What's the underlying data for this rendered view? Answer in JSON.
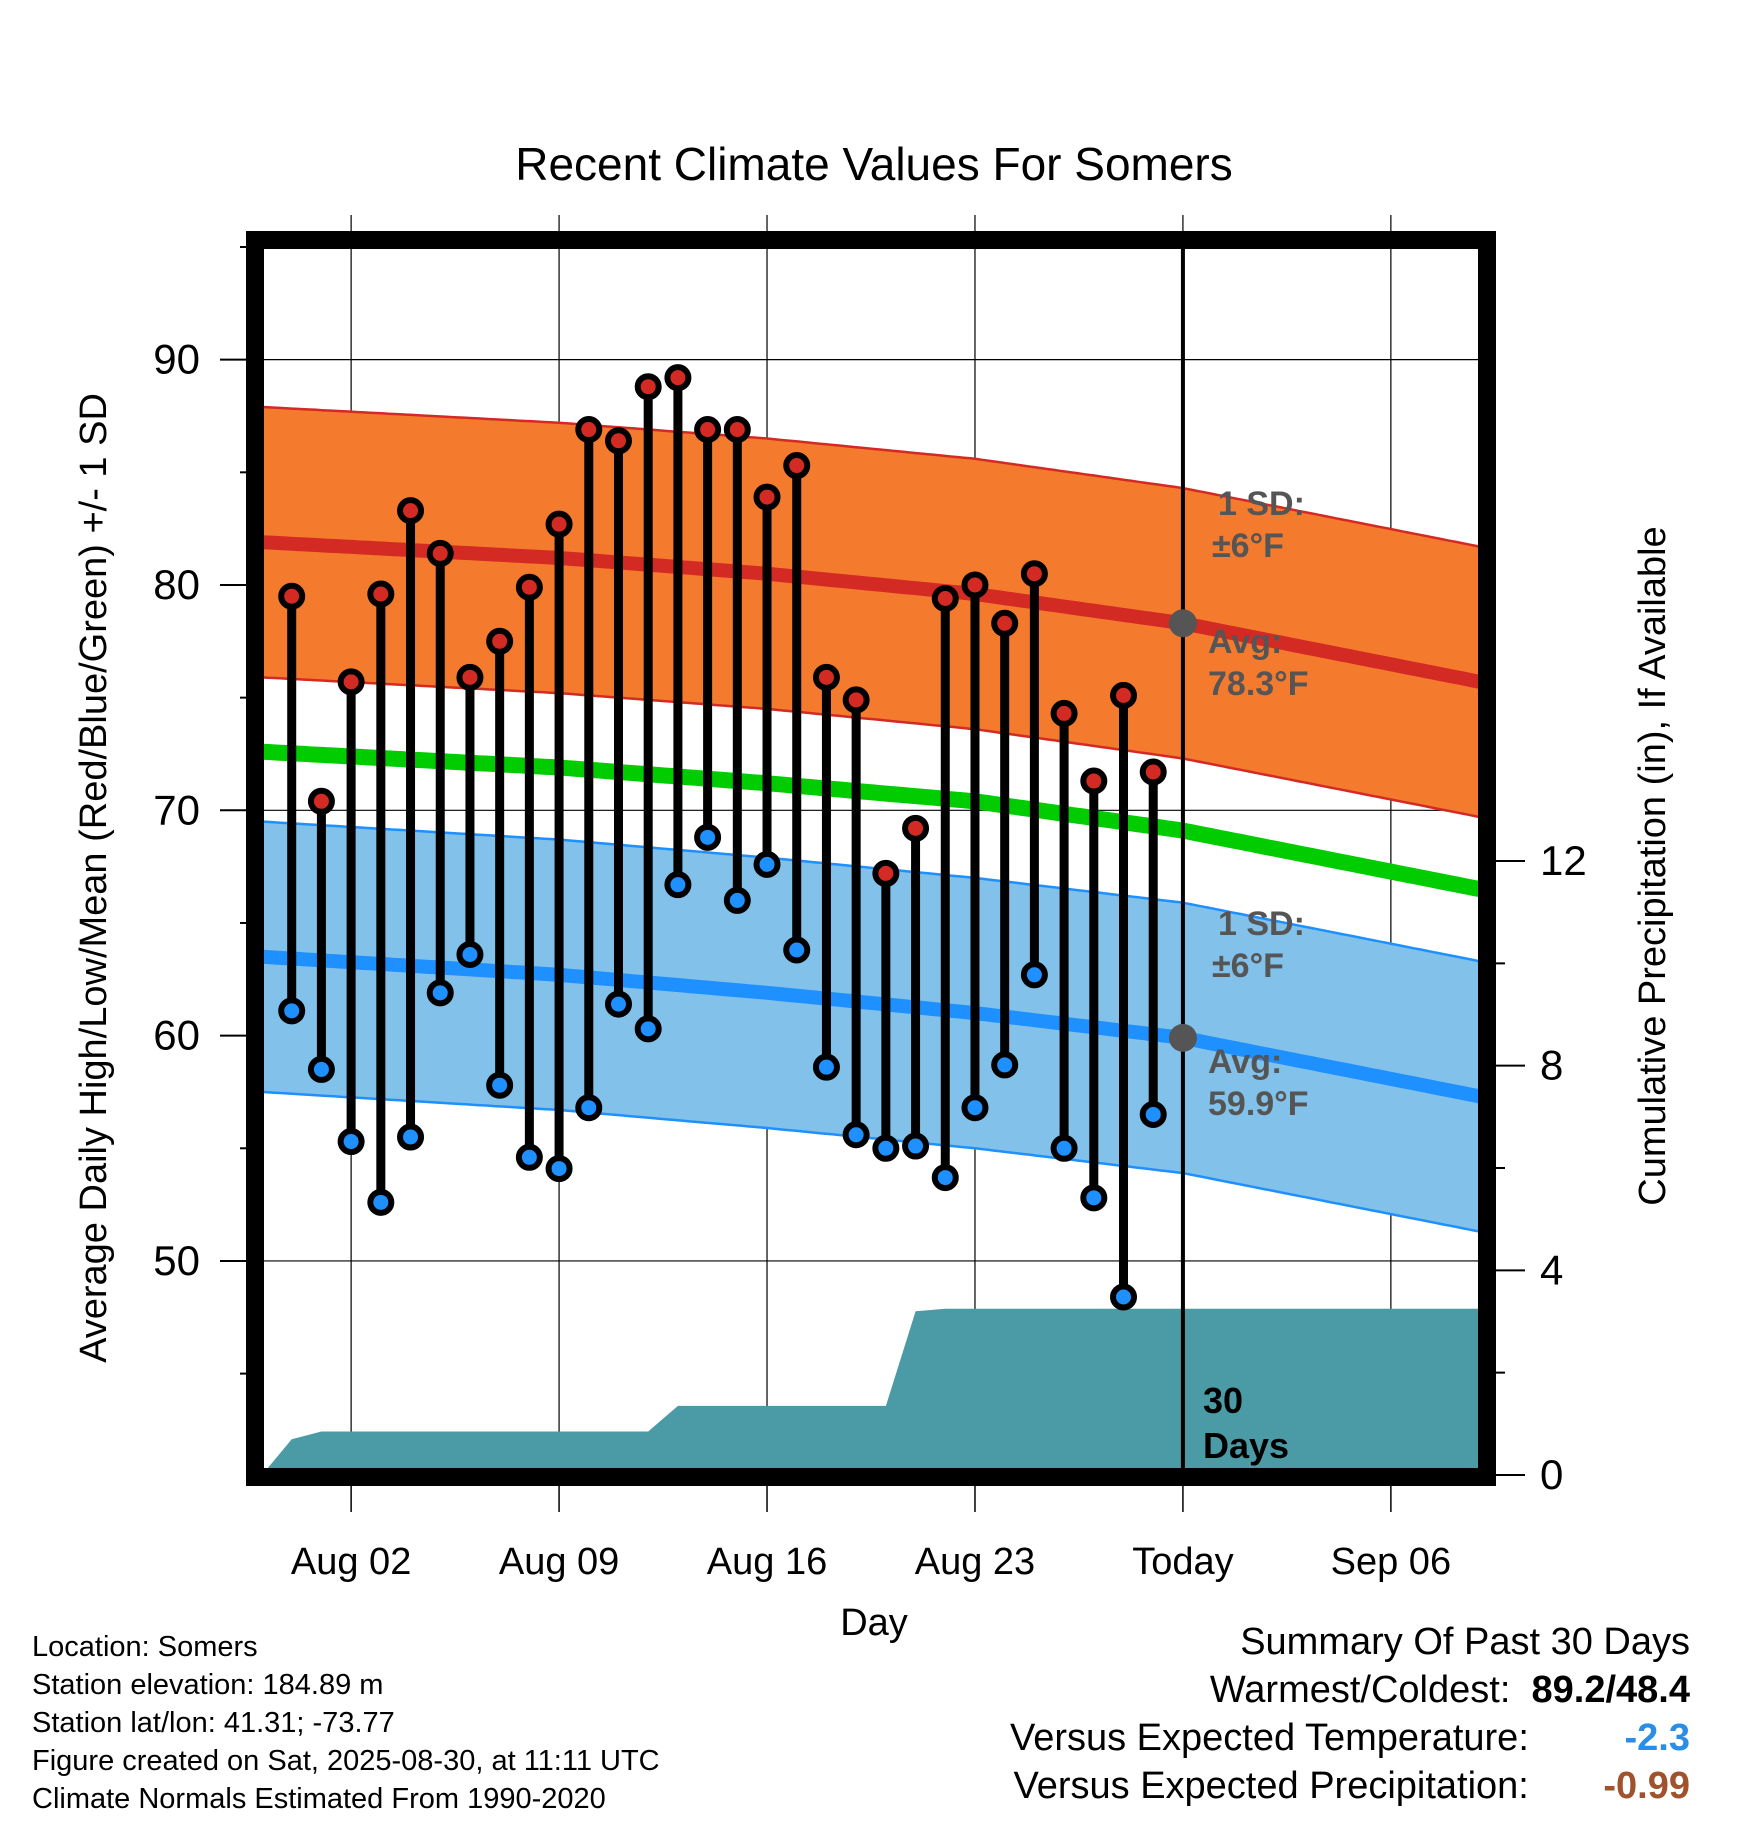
{
  "chart_data": {
    "type": "line",
    "title": "Recent Climate Values For Somers",
    "xlabel": "Day",
    "ylabel": "Average Daily High/Low/Mean (Red/Blue/Green) +/- 1 SD",
    "y2label": "Cumulative Precipitation (in), If Available",
    "ylim": [
      40.5,
      95
    ],
    "y2lim": [
      0,
      24
    ],
    "yticks": [
      50,
      60,
      70,
      80,
      90
    ],
    "y2ticks": [
      0,
      4,
      8,
      12
    ],
    "x_dates": [
      "2025-07-30",
      "2025-09-09"
    ],
    "xticks": [
      {
        "date": "2025-08-02",
        "label": "Aug 02"
      },
      {
        "date": "2025-08-09",
        "label": "Aug 09"
      },
      {
        "date": "2025-08-16",
        "label": "Aug 16"
      },
      {
        "date": "2025-08-23",
        "label": "Aug 23"
      },
      {
        "date": "2025-08-30",
        "label": "Today"
      },
      {
        "date": "2025-09-06",
        "label": "Sep 06"
      }
    ],
    "grid": true,
    "today": "2025-08-30",
    "today_label": "30 Days",
    "daily": {
      "dates": [
        "2025-07-31",
        "2025-08-01",
        "2025-08-02",
        "2025-08-03",
        "2025-08-04",
        "2025-08-05",
        "2025-08-06",
        "2025-08-07",
        "2025-08-08",
        "2025-08-09",
        "2025-08-10",
        "2025-08-11",
        "2025-08-12",
        "2025-08-13",
        "2025-08-14",
        "2025-08-15",
        "2025-08-16",
        "2025-08-17",
        "2025-08-18",
        "2025-08-19",
        "2025-08-20",
        "2025-08-21",
        "2025-08-22",
        "2025-08-23",
        "2025-08-24",
        "2025-08-25",
        "2025-08-26",
        "2025-08-27",
        "2025-08-28",
        "2025-08-29"
      ],
      "highs": [
        79.5,
        70.4,
        75.7,
        79.6,
        83.3,
        81.4,
        75.9,
        77.5,
        79.9,
        82.7,
        86.9,
        86.4,
        88.8,
        89.2,
        86.9,
        86.9,
        83.9,
        85.3,
        75.9,
        74.9,
        67.2,
        69.2,
        79.4,
        80.0,
        78.3,
        80.5,
        74.3,
        71.3,
        75.1,
        71.7
      ],
      "lows": [
        61.1,
        58.5,
        55.3,
        52.6,
        55.5,
        61.9,
        63.6,
        57.8,
        54.6,
        54.1,
        56.8,
        61.4,
        60.3,
        66.7,
        68.8,
        66.0,
        67.6,
        63.8,
        58.6,
        55.6,
        55.0,
        55.1,
        53.7,
        56.8,
        58.7,
        62.7,
        55.0,
        52.8,
        48.4,
        56.5
      ]
    },
    "normals": {
      "dates": [
        "2025-07-30",
        "2025-08-09",
        "2025-08-16",
        "2025-08-23",
        "2025-08-30",
        "2025-09-09"
      ],
      "high_avg": [
        81.9,
        81.2,
        80.5,
        79.6,
        78.3,
        75.7
      ],
      "low_avg": [
        63.5,
        62.7,
        61.9,
        61.0,
        59.9,
        57.3
      ],
      "mean_avg": [
        72.6,
        71.9,
        71.2,
        70.4,
        69.1,
        66.5
      ],
      "sd": 6
    },
    "precip": {
      "dates": [
        "2025-07-30",
        "2025-07-31",
        "2025-08-01",
        "2025-08-12",
        "2025-08-13",
        "2025-08-20",
        "2025-08-21",
        "2025-08-22",
        "2025-09-09"
      ],
      "values": [
        0.0,
        0.7,
        0.85,
        0.85,
        1.35,
        1.35,
        3.2,
        3.25,
        3.25
      ]
    },
    "annotations": {
      "high_sd": "1 SD:",
      "high_sd_val": "±6°F",
      "high_avg_label": "Avg:",
      "high_avg_val": "78.3°F",
      "low_sd": "1 SD:",
      "low_sd_val": "±6°F",
      "low_avg_label": "Avg:",
      "low_avg_val": "59.9°F"
    },
    "colors": {
      "high_band": "#f47a2e",
      "high_line": "#d42a24",
      "low_band": "#82c1e9",
      "low_line": "#1e90ff",
      "mean_line": "#00cc00",
      "precip": "#4a9ba5",
      "high_dot": "#d42a24",
      "low_dot": "#1e90ff"
    }
  },
  "meta": {
    "location": "Location: Somers",
    "elevation": "Station elevation: 184.89 m",
    "latlon": "Station lat/lon: 41.31; -73.77",
    "created": "Figure created on Sat, 2025-08-30, at 11:11 UTC",
    "normals": "Climate Normals Estimated From 1990-2020"
  },
  "summary": {
    "title": "Summary Of Past 30 Days",
    "warmest_coldest_label": "Warmest/Coldest:",
    "warmest_coldest_value": "89.2/48.4",
    "temp_label": "Versus Expected Temperature:",
    "temp_value": "-2.3",
    "precip_label": "Versus Expected Precipitation:",
    "precip_value": "-0.99"
  }
}
